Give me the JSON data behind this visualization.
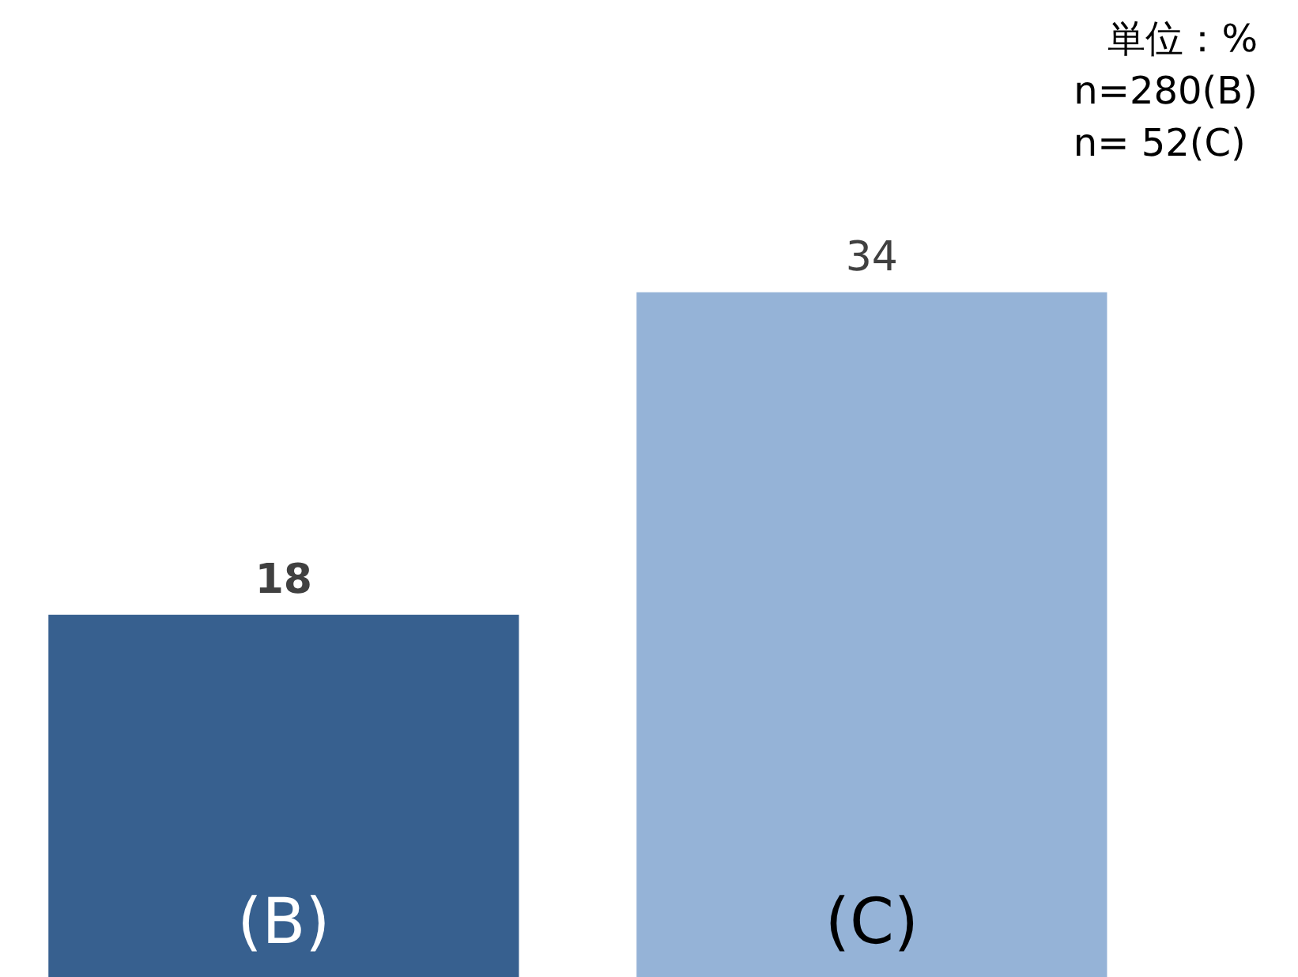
{
  "chart_data": {
    "type": "bar",
    "categories": [
      "(B)",
      "(C)"
    ],
    "values": [
      18,
      34
    ],
    "colors": [
      "#37608f",
      "#95b3d7"
    ],
    "data_labels": true,
    "grid": false,
    "annotations": [
      "単位：%",
      "n=280(B)",
      "n=  52(C)"
    ]
  }
}
